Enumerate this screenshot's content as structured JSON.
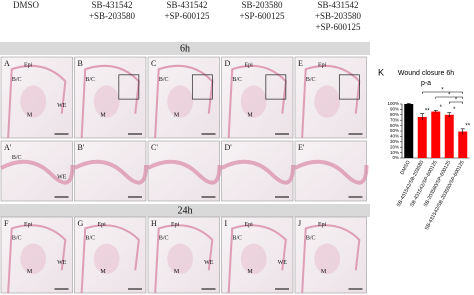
{
  "headers": [
    "DMSO",
    "SB-431542\n+SB-203580",
    "SB-431542\n+SP-600125",
    "SB-203580\n+SP-600125",
    "SB-431542\n+SB-203580\n+SP-600125"
  ],
  "rows": [
    {
      "band": "6h",
      "panels": [
        {
          "label": "A",
          "tags": [
            "Epi",
            "B/C",
            "M",
            "WE"
          ]
        },
        {
          "label": "B",
          "tags": [
            "",
            "B/C",
            "M"
          ]
        },
        {
          "label": "C",
          "tags": [
            "",
            "B/C",
            "M"
          ]
        },
        {
          "label": "D",
          "tags": [
            "Epi",
            "B/C",
            "M"
          ]
        },
        {
          "label": "E",
          "tags": [
            "Epi",
            "B/C"
          ]
        }
      ]
    },
    {
      "panels": [
        {
          "label": "A'",
          "tags": [
            "",
            "B/C",
            "",
            "WE"
          ]
        },
        {
          "label": "B'",
          "tags": []
        },
        {
          "label": "C'",
          "tags": []
        },
        {
          "label": "D'",
          "tags": []
        },
        {
          "label": "E'",
          "tags": []
        }
      ]
    },
    {
      "band": "24h",
      "panels": [
        {
          "label": "F",
          "tags": [
            "Epi",
            "B/C",
            "M",
            "WE"
          ]
        },
        {
          "label": "G",
          "tags": [
            "Epi",
            "B/C",
            "M"
          ]
        },
        {
          "label": "H",
          "tags": [
            "Epi",
            "B/C",
            "M",
            "WE"
          ]
        },
        {
          "label": "I",
          "tags": [
            "Epi",
            "B/C",
            "M",
            "WE"
          ]
        },
        {
          "label": "J",
          "tags": [
            "Epi",
            "B/C",
            "M"
          ]
        }
      ]
    }
  ],
  "chart_data": {
    "type": "bar",
    "panel_label": "K",
    "title": "Wound closure 6h",
    "subtitle": "p-a",
    "categories": [
      "DMSO",
      "SB-431542/SB-203580",
      "SB-431542/SP-600125",
      "SB-203580/SP-600125",
      "SB-431542/SB-203580/SP-600125"
    ],
    "values": [
      100,
      76,
      86,
      80,
      49
    ],
    "errors": [
      1,
      6,
      2,
      4,
      5
    ],
    "colors": [
      "#000000",
      "#ff0000",
      "#ff0000",
      "#ff0000",
      "#ff0000"
    ],
    "value_annotations": [
      "",
      "**",
      "*",
      "*",
      "**"
    ],
    "ylim": [
      0,
      100
    ],
    "yticks": [
      {
        "value": 0,
        "label": "0%"
      },
      {
        "value": 10,
        "label": "10%"
      },
      {
        "value": 20,
        "label": "20%"
      },
      {
        "value": 30,
        "label": "30%"
      },
      {
        "value": 40,
        "label": "40%"
      },
      {
        "value": 50,
        "label": "50%"
      },
      {
        "value": 60,
        "label": "60%"
      },
      {
        "value": 70,
        "label": "70%"
      },
      {
        "value": 80,
        "label": "80%"
      },
      {
        "value": 90,
        "label": "90%"
      },
      {
        "value": 100,
        "label": "100%"
      }
    ],
    "brackets": [
      {
        "from": 1,
        "to": 4,
        "label": "*"
      },
      {
        "from": 2,
        "to": 4,
        "label": "*"
      },
      {
        "from": 3,
        "to": 4,
        "label": "*"
      }
    ]
  }
}
